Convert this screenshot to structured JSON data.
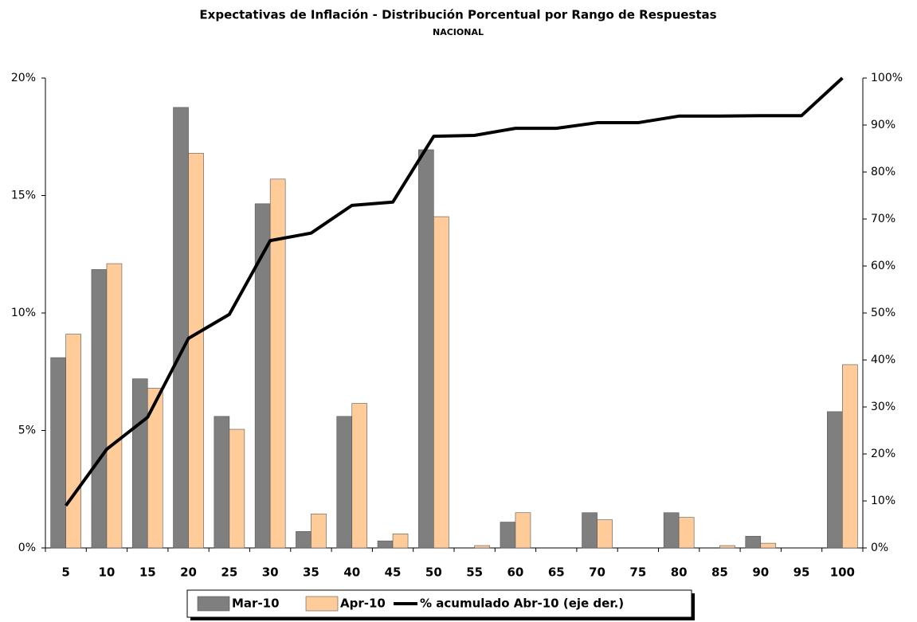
{
  "chart_data": {
    "type": "bar",
    "title": "Expectativas de Inflación - Distribución Porcentual por Rango de Respuestas",
    "subtitle": "NACIONAL",
    "categories": [
      "5",
      "10",
      "15",
      "20",
      "25",
      "30",
      "35",
      "40",
      "45",
      "50",
      "55",
      "60",
      "65",
      "70",
      "75",
      "80",
      "85",
      "90",
      "95",
      "100"
    ],
    "series": [
      {
        "name": "Mar-10",
        "color": "#7f7f7f",
        "values": [
          8.1,
          11.85,
          7.2,
          18.75,
          5.6,
          14.65,
          0.7,
          5.6,
          0.3,
          16.95,
          0,
          1.1,
          0,
          1.5,
          0,
          1.5,
          0,
          0.5,
          0,
          5.8
        ]
      },
      {
        "name": "Apr-10",
        "color": "#ffcc99",
        "values": [
          9.1,
          12.1,
          6.8,
          16.8,
          5.05,
          15.7,
          1.45,
          6.15,
          0.6,
          14.1,
          0.1,
          1.5,
          0,
          1.2,
          0,
          1.3,
          0.1,
          0.2,
          0,
          7.8
        ]
      },
      {
        "name": "% acumulado Abr-10 (eje der.)",
        "color": "#000000",
        "type": "line",
        "axis": "y2",
        "values": [
          9,
          21,
          27.8,
          44.6,
          49.7,
          65.4,
          67,
          72.9,
          73.6,
          87.6,
          87.8,
          89.3,
          89.3,
          90.5,
          90.5,
          91.9,
          91.9,
          92,
          92,
          100
        ]
      }
    ],
    "ylim": [
      0,
      20
    ],
    "yticks": [
      {
        "value": 0,
        "label": "0%"
      },
      {
        "value": 5,
        "label": "5%"
      },
      {
        "value": 10,
        "label": "10%"
      },
      {
        "value": 15,
        "label": "15%"
      },
      {
        "value": 20,
        "label": "20%"
      }
    ],
    "y2lim": [
      0,
      100
    ],
    "y2ticks": [
      {
        "value": 0,
        "label": "0%"
      },
      {
        "value": 10,
        "label": "10%"
      },
      {
        "value": 20,
        "label": "20%"
      },
      {
        "value": 30,
        "label": "30%"
      },
      {
        "value": 40,
        "label": "40%"
      },
      {
        "value": 50,
        "label": "50%"
      },
      {
        "value": 60,
        "label": "60%"
      },
      {
        "value": 70,
        "label": "70%"
      },
      {
        "value": 80,
        "label": "80%"
      },
      {
        "value": 90,
        "label": "90%"
      },
      {
        "value": 100,
        "label": "100%"
      }
    ],
    "grid": false
  }
}
